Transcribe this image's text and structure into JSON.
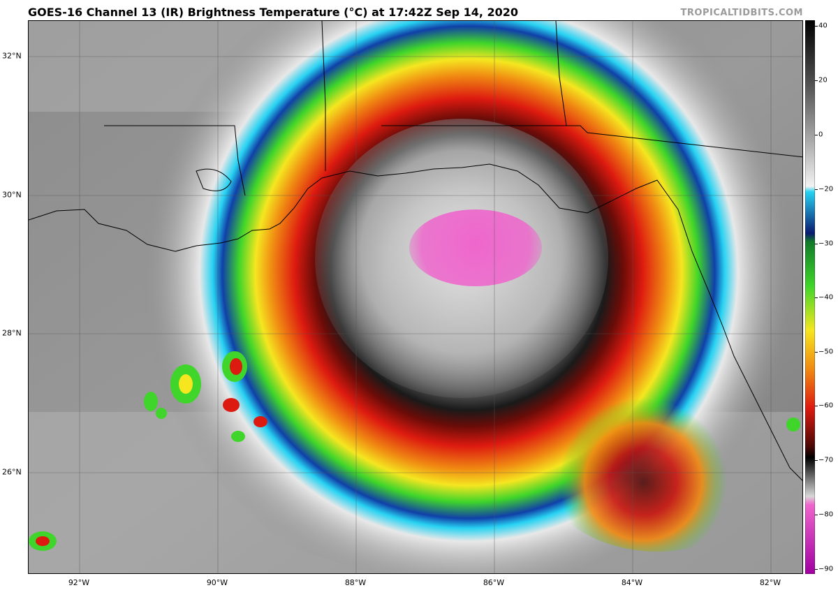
{
  "header": {
    "title": "GOES-16 Channel 13 (IR) Brightness Temperature (°C) at 17:42Z Sep 14, 2020",
    "credit": "TROPICALTIDBITS.COM"
  },
  "map": {
    "latitude_labels": [
      "32°N",
      "30°N",
      "28°N",
      "26°N"
    ],
    "longitude_labels": [
      "92°W",
      "90°W",
      "88°W",
      "86°W",
      "84°W",
      "82°W"
    ]
  },
  "colorbar": {
    "ticks": [
      "40",
      "20",
      "0",
      "−20",
      "−30",
      "−40",
      "−50",
      "−60",
      "−70",
      "−80",
      "−90"
    ],
    "colors": {
      "warm_gray": "#f2f2f2",
      "cyan": "#27d2f2",
      "blue": "#1040a8",
      "navy": "#0a1a70",
      "green": "#3fd52a",
      "yellow": "#f5e620",
      "orange": "#f08a12",
      "red": "#dd1a10",
      "dark_red": "#5a0a08",
      "black": "#000000",
      "pink": "#ee66cc",
      "magenta": "#a000a0"
    }
  }
}
